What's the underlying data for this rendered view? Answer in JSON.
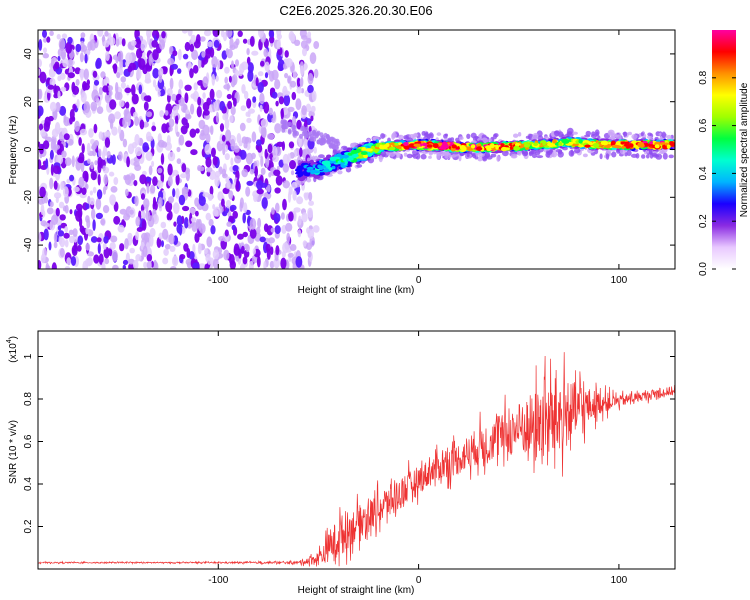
{
  "title": "C2E6.2025.326.20.30.E06",
  "chart_data": [
    {
      "type": "heatmap",
      "name": "spectrogram",
      "xlabel": "Height of straight line (km)",
      "ylabel": "Frequency (Hz)",
      "xlim": [
        -190,
        128
      ],
      "ylim": [
        -50,
        50
      ],
      "xticks": [
        -100,
        0,
        100
      ],
      "xtick_labels": [
        "-100",
        "0",
        "100"
      ],
      "yticks": [
        -40,
        -20,
        0,
        20,
        40
      ],
      "ytick_labels": [
        "-40",
        "-20",
        "0",
        "20",
        "40"
      ],
      "noise_region_x": [
        -190,
        -57
      ],
      "signal_track": {
        "x": [
          -60,
          -50,
          -40,
          -30,
          -20,
          0,
          20,
          40,
          60,
          75,
          90,
          110,
          128
        ],
        "freq": [
          -9,
          -8,
          -5,
          -2,
          1,
          2,
          1,
          1,
          2,
          3,
          2,
          2,
          2
        ],
        "peak_amplitude": [
          0.3,
          0.4,
          0.5,
          0.6,
          0.75,
          0.95,
          0.95,
          0.9,
          0.75,
          0.7,
          0.85,
          0.9,
          0.9
        ]
      },
      "colorbar": {
        "label": "Normalized spectral amplitude",
        "range": [
          0.0,
          1.0
        ],
        "ticks": [
          0.0,
          0.2,
          0.4,
          0.6,
          0.8
        ],
        "tick_labels": [
          "0.0",
          "0.2",
          "0.4",
          "0.6",
          "0.8"
        ],
        "colors": [
          "#ffffff",
          "#e8c8ff",
          "#8a2be2",
          "#1a00ff",
          "#00b4ff",
          "#00ffd0",
          "#00ff40",
          "#a0ff00",
          "#ffff00",
          "#ff9000",
          "#ff0000",
          "#ff00a0"
        ]
      }
    },
    {
      "type": "line",
      "name": "snr",
      "xlabel": "Height of straight line (km)",
      "ylabel": "SNR (10 * v/v)",
      "y_scale_label": "(x10",
      "y_scale_exponent": "4",
      "y_scale_suffix": ")",
      "xlim": [
        -190,
        128
      ],
      "ylim": [
        0,
        1.12
      ],
      "xticks": [
        -100,
        0,
        100
      ],
      "xtick_labels": [
        "-100",
        "0",
        "100"
      ],
      "yticks": [
        0.2,
        0.4,
        0.6,
        0.8,
        1
      ],
      "ytick_labels": [
        "0.2",
        "0.4",
        "0.6",
        "0.8",
        "1"
      ],
      "color": "#ee3333",
      "series": [
        {
          "name": "SNR",
          "x": [
            -190,
            -100,
            -60,
            -50,
            -40,
            -30,
            -20,
            -10,
            0,
            10,
            20,
            30,
            40,
            50,
            60,
            70,
            80,
            90,
            100,
            110,
            128
          ],
          "y": [
            0.03,
            0.03,
            0.03,
            0.05,
            0.15,
            0.22,
            0.28,
            0.35,
            0.42,
            0.48,
            0.52,
            0.58,
            0.62,
            0.66,
            0.68,
            0.72,
            0.75,
            0.78,
            0.79,
            0.81,
            0.84
          ],
          "spread": [
            0.005,
            0.005,
            0.01,
            0.06,
            0.18,
            0.14,
            0.14,
            0.14,
            0.12,
            0.12,
            0.14,
            0.16,
            0.18,
            0.22,
            0.32,
            0.35,
            0.22,
            0.1,
            0.05,
            0.04,
            0.04
          ]
        }
      ]
    }
  ]
}
